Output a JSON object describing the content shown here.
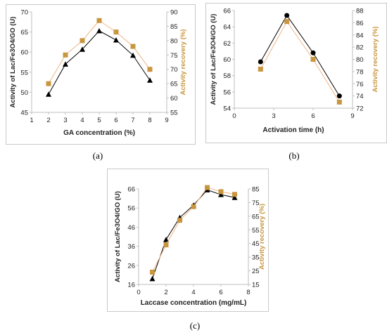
{
  "charts": [
    {
      "caption": "(a)",
      "chart_data": {
        "type": "line",
        "xlabel": "GA concentration (%)",
        "ylabel_left": "Activity of Lac/Fe3O4/GO (U)",
        "ylabel_right": "Activity recovery (%)",
        "x_ticks": [
          1,
          2,
          3,
          4,
          5,
          6,
          7,
          8,
          9
        ],
        "y_left_ticks": [
          45,
          50,
          55,
          60,
          65,
          70
        ],
        "y_right_ticks": [
          55,
          60,
          65,
          70,
          75,
          80,
          85,
          90
        ],
        "xlim": [
          1,
          9
        ],
        "ylim_left": [
          45,
          70
        ],
        "ylim_right": [
          55,
          90
        ],
        "series": [
          {
            "axis": "left",
            "marker": "triangle",
            "x": [
              2,
              3,
              4,
              5,
              6,
              7,
              8
            ],
            "y": [
              49.5,
              57,
              60.7,
              65.3,
              63,
              59.2,
              53
            ]
          },
          {
            "axis": "right",
            "marker": "square",
            "x": [
              2,
              3,
              4,
              5,
              6,
              7,
              8
            ],
            "y": [
              65,
              75,
              80,
              87,
              83,
              78,
              70
            ]
          }
        ]
      }
    },
    {
      "caption": "(b)",
      "chart_data": {
        "type": "line",
        "xlabel": "Activation time (h)",
        "ylabel_left": "Activity of Lac/Fe3O4/GO (U)",
        "ylabel_right": "Activity recovery (%)",
        "x_ticks": [
          0,
          3,
          6,
          9
        ],
        "y_left_ticks": [
          54,
          56,
          58,
          60,
          62,
          64,
          66
        ],
        "y_right_ticks": [
          72,
          74,
          76,
          78,
          80,
          82,
          84,
          86,
          88
        ],
        "xlim": [
          0,
          9
        ],
        "ylim_left": [
          54,
          66
        ],
        "ylim_right": [
          72,
          88
        ],
        "series": [
          {
            "axis": "left",
            "marker": "circle",
            "x": [
              2,
              4,
              6,
              8
            ],
            "y": [
              59.7,
              65.4,
              60.8,
              55.5
            ]
          },
          {
            "axis": "right",
            "marker": "square",
            "x": [
              2,
              4,
              6,
              8
            ],
            "y": [
              78.4,
              86.2,
              80,
              73
            ]
          }
        ]
      }
    },
    {
      "caption": "(c)",
      "chart_data": {
        "type": "line",
        "xlabel": "Laccase concentration (mg/mL)",
        "ylabel_left": "Activity of Lac/Fe3O4/GO (U)",
        "ylabel_right": "Activity recovery (%)",
        "x_ticks": [
          0,
          2,
          4,
          6,
          8
        ],
        "y_left_ticks": [
          16,
          26,
          36,
          46,
          56,
          66
        ],
        "y_right_ticks": [
          15,
          25,
          35,
          45,
          55,
          65,
          75,
          85
        ],
        "xlim": [
          0,
          8
        ],
        "ylim_left": [
          16,
          66
        ],
        "ylim_right": [
          15,
          85
        ],
        "series": [
          {
            "axis": "left",
            "marker": "triangle",
            "x": [
              1,
              2,
              3,
              4,
              5,
              6,
              7
            ],
            "y": [
              19,
              39.5,
              51,
              57.5,
              65.5,
              63,
              61.5
            ]
          },
          {
            "axis": "right",
            "marker": "square",
            "x": [
              1,
              2,
              3,
              4,
              5,
              6,
              7
            ],
            "y": [
              24,
              44,
              62,
              72,
              86,
              83,
              81
            ]
          }
        ]
      }
    }
  ],
  "colors": {
    "left_series": "#000000",
    "right_series": "#c8963e",
    "right_line": "#f0b382",
    "right_axis_label": "#c8963e",
    "axis": "#bfbfbf"
  }
}
